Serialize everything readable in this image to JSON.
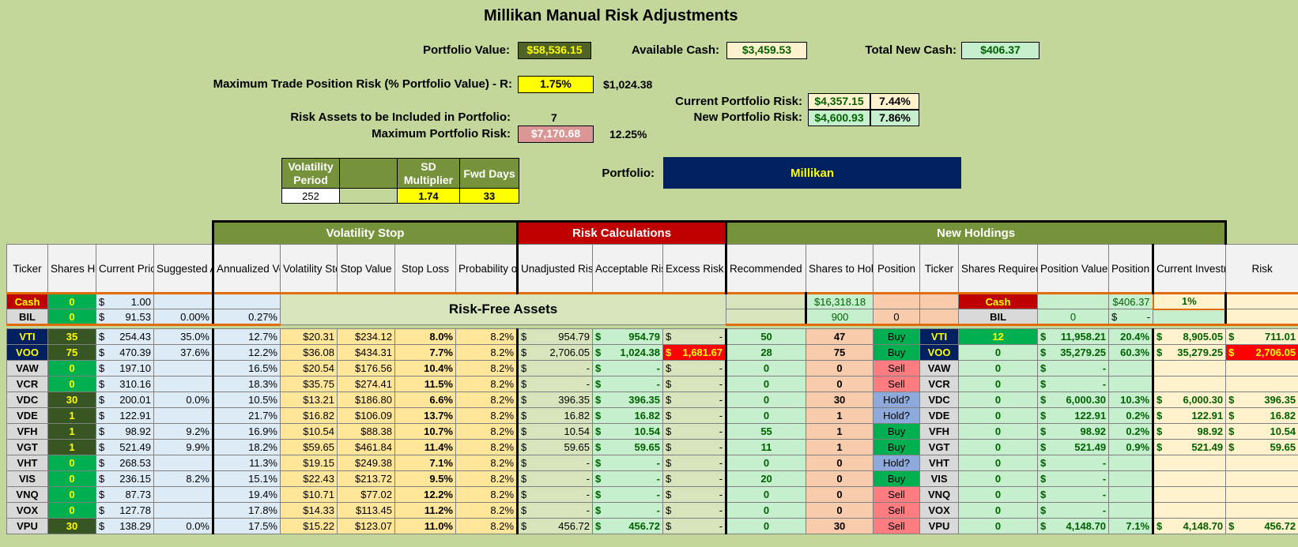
{
  "title": "Millikan Manual Risk Adjustments",
  "summary": {
    "portfolio_value_label": "Portfolio Value:",
    "portfolio_value": "$58,536.15",
    "available_cash_label": "Available Cash:",
    "available_cash": "$3,459.53",
    "total_new_cash_label": "Total New Cash:",
    "total_new_cash": "$406.37",
    "max_trade_label": "Maximum Trade Position Risk (% Portfolio Value) - R:",
    "max_trade_pct": "1.75%",
    "max_trade_value": "$1,024.38",
    "current_risk_label": "Current Portfolio Risk:",
    "current_risk_value": "$4,357.15",
    "current_risk_pct": "7.44%",
    "new_risk_label": "New Portfolio Risk:",
    "new_risk_value": "$4,600.93",
    "new_risk_pct": "7.86%",
    "risk_assets_label": "Risk Assets to be Included in Portfolio:",
    "risk_assets_count": "7",
    "max_portfolio_risk_label": "Maximum Portfolio Risk:",
    "max_portfolio_risk_value": "$7,170.68",
    "max_portfolio_risk_pct": "12.25%",
    "portfolio_label": "Portfolio:",
    "portfolio_name": "Millikan"
  },
  "params": {
    "vol_period_label": "Volatility Period",
    "vol_period": "252",
    "sd_mult_label": "SD Multiplier",
    "sd_mult": "1.74",
    "fwd_days_label": "Fwd Days",
    "fwd_days": "33"
  },
  "bands": {
    "volatility_stop": "Volatility Stop",
    "risk_calculations": "Risk Calculations",
    "new_holdings": "New Holdings"
  },
  "headers": [
    "Ticker",
    "Shares Held",
    "Current Price",
    "Suggested Allocation",
    "Annualized Volatility",
    "Volatility Stop",
    "Stop Value",
    "Stop Loss",
    "Probability of Stop",
    "Unadjusted Risk",
    "Acceptable Risk",
    "Excess Risk",
    "Recommended Shares from Auto",
    "Shares to Hold",
    "Position",
    "Ticker",
    "Shares Required",
    "Position Value",
    "Position %",
    "Current Investments",
    "Risk"
  ],
  "risk_free_label": "Risk-Free Assets",
  "cash_row": {
    "ticker": "Cash",
    "shares": "0",
    "price": "1.00",
    "rec": "$16,318.18",
    "ticker2": "Cash",
    "pos_value": "$406.37",
    "pos_pct": "1%"
  },
  "bil_row": {
    "ticker": "BIL",
    "shares": "0",
    "price": "91.53",
    "alloc": "0.00%",
    "vol": "0.27%",
    "rec": "900",
    "hold": "0",
    "ticker2": "BIL",
    "req": "0",
    "pos_value": "-"
  },
  "rows": [
    {
      "ticker": "VTI",
      "shares": "35",
      "price": "254.43",
      "alloc": "35.0%",
      "vol": "12.7%",
      "vstop": "$20.31",
      "sval": "$234.12",
      "sloss": "8.0%",
      "prob": "8.2%",
      "unadj": "954.79",
      "accept": "954.79",
      "excess": "-",
      "rec": "50",
      "hold": "47",
      "pos": "Buy",
      "ticker2": "VTI",
      "req": "12",
      "pval": "11,958.21",
      "ppct": "20.4%",
      "cur": "8,905.05",
      "risk": "711.01"
    },
    {
      "ticker": "VOO",
      "shares": "75",
      "price": "470.39",
      "alloc": "37.6%",
      "vol": "12.2%",
      "vstop": "$36.08",
      "sval": "$434.31",
      "sloss": "7.7%",
      "prob": "8.2%",
      "unadj": "2,706.05",
      "accept": "1,024.38",
      "excess": "1,681.67",
      "rec": "28",
      "hold": "75",
      "pos": "Buy",
      "ticker2": "VOO",
      "req": "0",
      "pval": "35,279.25",
      "ppct": "60.3%",
      "cur": "35,279.25",
      "risk": "2,706.05"
    },
    {
      "ticker": "VAW",
      "shares": "0",
      "price": "197.10",
      "alloc": "",
      "vol": "16.5%",
      "vstop": "$20.54",
      "sval": "$176.56",
      "sloss": "10.4%",
      "prob": "8.2%",
      "unadj": "-",
      "accept": "-",
      "excess": "-",
      "rec": "0",
      "hold": "0",
      "pos": "Sell",
      "ticker2": "VAW",
      "req": "0",
      "pval": "-",
      "ppct": "",
      "cur": "",
      "risk": ""
    },
    {
      "ticker": "VCR",
      "shares": "0",
      "price": "310.16",
      "alloc": "",
      "vol": "18.3%",
      "vstop": "$35.75",
      "sval": "$274.41",
      "sloss": "11.5%",
      "prob": "8.2%",
      "unadj": "-",
      "accept": "-",
      "excess": "-",
      "rec": "0",
      "hold": "0",
      "pos": "Sell",
      "ticker2": "VCR",
      "req": "0",
      "pval": "-",
      "ppct": "",
      "cur": "",
      "risk": ""
    },
    {
      "ticker": "VDC",
      "shares": "30",
      "price": "200.01",
      "alloc": "0.0%",
      "vol": "10.5%",
      "vstop": "$13.21",
      "sval": "$186.80",
      "sloss": "6.6%",
      "prob": "8.2%",
      "unadj": "396.35",
      "accept": "396.35",
      "excess": "-",
      "rec": "0",
      "hold": "30",
      "pos": "Hold?",
      "ticker2": "VDC",
      "req": "0",
      "pval": "6,000.30",
      "ppct": "10.3%",
      "cur": "6,000.30",
      "risk": "396.35"
    },
    {
      "ticker": "VDE",
      "shares": "1",
      "price": "122.91",
      "alloc": "",
      "vol": "21.7%",
      "vstop": "$16.82",
      "sval": "$106.09",
      "sloss": "13.7%",
      "prob": "8.2%",
      "unadj": "16.82",
      "accept": "16.82",
      "excess": "-",
      "rec": "0",
      "hold": "1",
      "pos": "Hold?",
      "ticker2": "VDE",
      "req": "0",
      "pval": "122.91",
      "ppct": "0.2%",
      "cur": "122.91",
      "risk": "16.82"
    },
    {
      "ticker": "VFH",
      "shares": "1",
      "price": "98.92",
      "alloc": "9.2%",
      "vol": "16.9%",
      "vstop": "$10.54",
      "sval": "$88.38",
      "sloss": "10.7%",
      "prob": "8.2%",
      "unadj": "10.54",
      "accept": "10.54",
      "excess": "-",
      "rec": "55",
      "hold": "1",
      "pos": "Buy",
      "ticker2": "VFH",
      "req": "0",
      "pval": "98.92",
      "ppct": "0.2%",
      "cur": "98.92",
      "risk": "10.54"
    },
    {
      "ticker": "VGT",
      "shares": "1",
      "price": "521.49",
      "alloc": "9.9%",
      "vol": "18.2%",
      "vstop": "$59.65",
      "sval": "$461.84",
      "sloss": "11.4%",
      "prob": "8.2%",
      "unadj": "59.65",
      "accept": "59.65",
      "excess": "-",
      "rec": "11",
      "hold": "1",
      "pos": "Buy",
      "ticker2": "VGT",
      "req": "0",
      "pval": "521.49",
      "ppct": "0.9%",
      "cur": "521.49",
      "risk": "59.65"
    },
    {
      "ticker": "VHT",
      "shares": "0",
      "price": "268.53",
      "alloc": "",
      "vol": "11.3%",
      "vstop": "$19.15",
      "sval": "$249.38",
      "sloss": "7.1%",
      "prob": "8.2%",
      "unadj": "-",
      "accept": "-",
      "excess": "-",
      "rec": "0",
      "hold": "0",
      "pos": "Hold?",
      "ticker2": "VHT",
      "req": "0",
      "pval": "-",
      "ppct": "",
      "cur": "",
      "risk": ""
    },
    {
      "ticker": "VIS",
      "shares": "0",
      "price": "236.15",
      "alloc": "8.2%",
      "vol": "15.1%",
      "vstop": "$22.43",
      "sval": "$213.72",
      "sloss": "9.5%",
      "prob": "8.2%",
      "unadj": "-",
      "accept": "-",
      "excess": "-",
      "rec": "20",
      "hold": "0",
      "pos": "Buy",
      "ticker2": "VIS",
      "req": "0",
      "pval": "-",
      "ppct": "",
      "cur": "",
      "risk": ""
    },
    {
      "ticker": "VNQ",
      "shares": "0",
      "price": "87.73",
      "alloc": "",
      "vol": "19.4%",
      "vstop": "$10.71",
      "sval": "$77.02",
      "sloss": "12.2%",
      "prob": "8.2%",
      "unadj": "-",
      "accept": "-",
      "excess": "-",
      "rec": "0",
      "hold": "0",
      "pos": "Sell",
      "ticker2": "VNQ",
      "req": "0",
      "pval": "-",
      "ppct": "",
      "cur": "",
      "risk": ""
    },
    {
      "ticker": "VOX",
      "shares": "0",
      "price": "127.78",
      "alloc": "",
      "vol": "17.8%",
      "vstop": "$14.33",
      "sval": "$113.45",
      "sloss": "11.2%",
      "prob": "8.2%",
      "unadj": "-",
      "accept": "-",
      "excess": "-",
      "rec": "0",
      "hold": "0",
      "pos": "Sell",
      "ticker2": "VOX",
      "req": "0",
      "pval": "-",
      "ppct": "",
      "cur": "",
      "risk": ""
    },
    {
      "ticker": "VPU",
      "shares": "30",
      "price": "138.29",
      "alloc": "0.0%",
      "vol": "17.5%",
      "vstop": "$15.22",
      "sval": "$123.07",
      "sloss": "11.0%",
      "prob": "8.2%",
      "unadj": "456.72",
      "accept": "456.72",
      "excess": "-",
      "rec": "0",
      "hold": "30",
      "pos": "Sell",
      "ticker2": "VPU",
      "req": "0",
      "pval": "4,148.70",
      "ppct": "7.1%",
      "cur": "4,148.70",
      "risk": "456.72"
    }
  ],
  "currency_symbol": "$"
}
